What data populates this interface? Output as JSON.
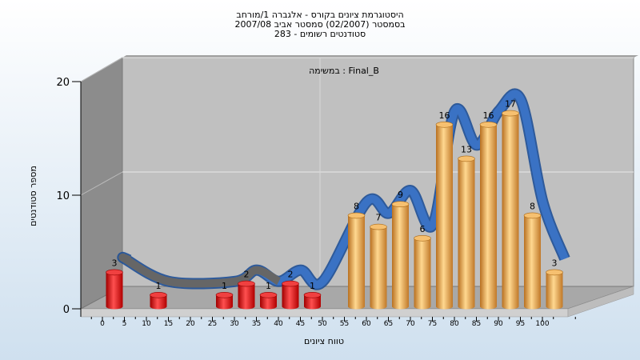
{
  "chart_data": {
    "type": "bar",
    "title_lines": [
      "היסטוגרמת ציונים בקורס - אלגברה 1/מורחב",
      "בסמסטר  (02/2007)  סמסטר אביב 2007/08",
      "283 - סטודנטים רשומים"
    ],
    "annotation": "במשימה : Final_B",
    "xlabel": "טווח ציונים",
    "ylabel": "מספר סטודנטים",
    "ylim": [
      0,
      20
    ],
    "yticks": [
      0,
      10,
      20
    ],
    "xticks": [
      0,
      5,
      10,
      15,
      20,
      25,
      30,
      35,
      40,
      45,
      50,
      55,
      60,
      65,
      70,
      75,
      80,
      85,
      90,
      95,
      100
    ],
    "categories": [
      0,
      10,
      25,
      30,
      35,
      40,
      45,
      55,
      60,
      65,
      70,
      75,
      80,
      85,
      90,
      95,
      100
    ],
    "values": [
      3,
      1,
      1,
      2,
      1,
      2,
      1,
      8,
      7,
      9,
      6,
      16,
      13,
      16,
      17,
      8,
      3
    ],
    "bar_colors": {
      "fail": "#d81818",
      "pass": "#e8a040"
    },
    "pass_threshold": 55,
    "trend_colors": {
      "low": "#666666",
      "high": "#3a72c4"
    }
  }
}
